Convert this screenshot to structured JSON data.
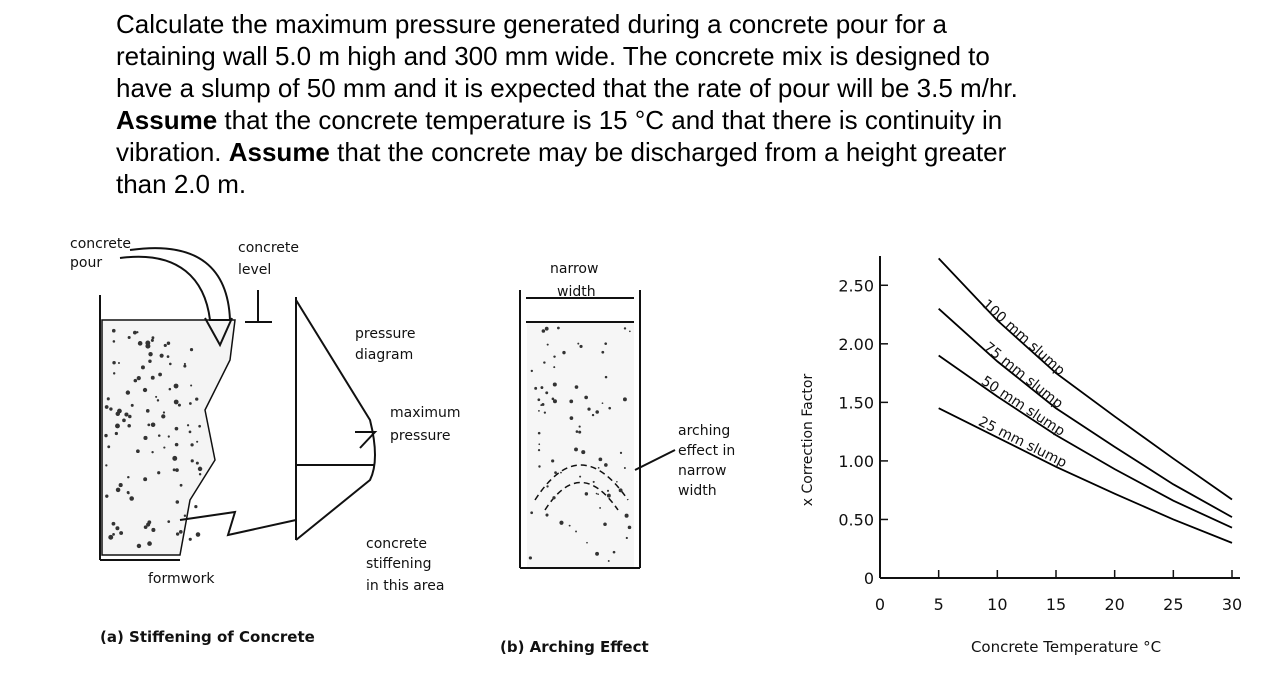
{
  "problem": {
    "lines": [
      [
        {
          "text": "Calculate the maximum pressure generated during a concrete pour for a",
          "bold": false
        }
      ],
      [
        {
          "text": "retaining wall 5.0 m high and 300 mm wide. The concrete mix is designed to",
          "bold": false
        }
      ],
      [
        {
          "text": "have a slump of 50 mm and it is expected that the rate of pour will be 3.5 m/hr.",
          "bold": false
        }
      ],
      [
        {
          "text": "Assume",
          "bold": true
        },
        {
          "text": " that the concrete temperature is 15 °C and that there is continuity in",
          "bold": false
        }
      ],
      [
        {
          "text": "vibration. ",
          "bold": false
        },
        {
          "text": "Assume",
          "bold": true
        },
        {
          "text": " that the concrete may be discharged from a height greater",
          "bold": false
        }
      ],
      [
        {
          "text": "than 2.0 m.",
          "bold": false
        }
      ]
    ]
  },
  "figure_a": {
    "concrete_pour": [
      "concrete",
      "pour"
    ],
    "concrete_level": [
      "concrete",
      "level"
    ],
    "pressure_diagram": [
      "pressure",
      "diagram"
    ],
    "maximum_pressure": [
      "maximum",
      "pressure"
    ],
    "concrete_stiffening": [
      "concrete",
      "stiffening",
      "in this area"
    ],
    "formwork": "formwork",
    "caption": "(a) Stiffening of Concrete"
  },
  "figure_b": {
    "narrow_width": [
      "narrow",
      "width"
    ],
    "arching_effect": [
      "arching",
      "effect in",
      "narrow",
      "width"
    ],
    "caption": "(b) Arching Effect"
  },
  "chart_data": {
    "type": "line",
    "xlabel": "Concrete Temperature °C",
    "ylabel": "x Correction Factor",
    "x": [
      5,
      10,
      15,
      20,
      25,
      30
    ],
    "series": [
      {
        "name": "100 mm slump",
        "color": "#000000",
        "values": [
          2.73,
          2.2,
          1.75,
          1.38,
          1.02,
          0.67
        ]
      },
      {
        "name": "75 mm slump",
        "color": "#000000",
        "values": [
          2.3,
          1.85,
          1.45,
          1.12,
          0.8,
          0.52
        ]
      },
      {
        "name": "50 mm slump",
        "color": "#000000",
        "values": [
          1.9,
          1.55,
          1.22,
          0.93,
          0.66,
          0.43
        ]
      },
      {
        "name": "25 mm slump",
        "color": "#000000",
        "values": [
          1.45,
          1.2,
          0.95,
          0.72,
          0.5,
          0.3
        ]
      }
    ],
    "xlim": [
      0,
      30
    ],
    "xticks": [
      0,
      5,
      10,
      15,
      20,
      25,
      30
    ],
    "ylim": [
      0,
      2.75
    ],
    "yticks": [
      0,
      {
        "value": 0.5,
        "label": "0.50"
      },
      {
        "value": 1,
        "label": "1.00"
      },
      {
        "value": 1.5,
        "label": "1.50"
      },
      {
        "value": 2,
        "label": "2.00"
      },
      {
        "value": 2.5,
        "label": "2.50"
      }
    ]
  }
}
